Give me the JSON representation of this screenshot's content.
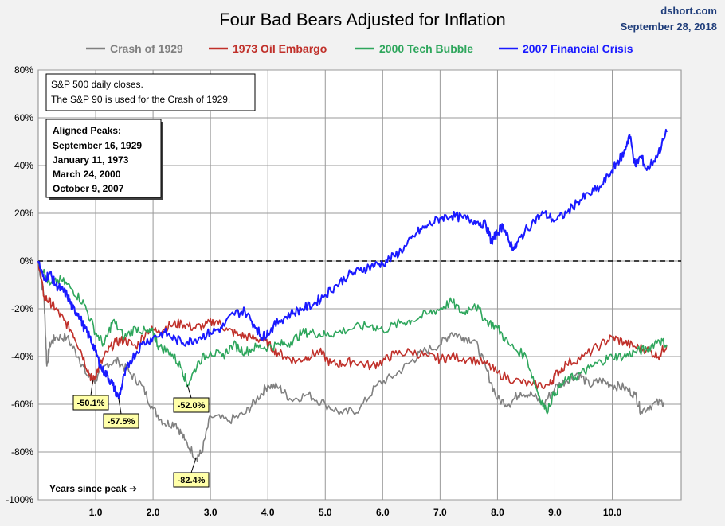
{
  "header": {
    "title": "Four Bad Bears Adjusted for Inflation",
    "brand": "dshort.com",
    "date": "September 28, 2018"
  },
  "notes": {
    "line1": "S&P 500 daily closes.",
    "line2": "The S&P 90 is used for the Crash of 1929."
  },
  "aligned_peaks": {
    "heading": "Aligned Peaks:",
    "items": [
      {
        "label": "September 16, 1929",
        "color": "#808080"
      },
      {
        "label": "January 11, 1973",
        "color": "#c0302a"
      },
      {
        "label": "March 24, 2000",
        "color": "#2ea65c"
      },
      {
        "label": "October 9, 2007",
        "color": "#1a1aff"
      }
    ]
  },
  "x_axis_note": "Years since peak ➔",
  "callouts": [
    {
      "text": "-50.1%",
      "series": 1,
      "x": 0.95,
      "y": -50.1
    },
    {
      "text": "-57.5%",
      "series": 3,
      "x": 1.4,
      "y": -57.5
    },
    {
      "text": "-52.0%",
      "series": 2,
      "x": 2.6,
      "y": -52.0
    },
    {
      "text": "-82.4%",
      "series": 0,
      "x": 2.75,
      "y": -82.4
    }
  ],
  "chart_data": {
    "type": "line",
    "title": "Four Bad Bears Adjusted for Inflation",
    "xlabel": "Years since peak",
    "ylabel": "",
    "xlim": [
      0,
      11.2
    ],
    "ylim": [
      -100,
      80
    ],
    "x_ticks": [
      1.0,
      2.0,
      3.0,
      4.0,
      5.0,
      6.0,
      7.0,
      8.0,
      9.0,
      10.0
    ],
    "x_tick_labels": [
      "1.0",
      "2.0",
      "3.0",
      "4.0",
      "5.0",
      "6.0",
      "7.0",
      "8.0",
      "9.0",
      "10.0"
    ],
    "y_ticks": [
      -100,
      -80,
      -60,
      -40,
      -20,
      0,
      20,
      40,
      60,
      80
    ],
    "y_tick_labels": [
      "-100%",
      "-80%",
      "-60%",
      "-40%",
      "-20%",
      "0%",
      "20%",
      "40%",
      "60%",
      "80%"
    ],
    "grid": true,
    "legend_position": "top",
    "zero_line": "dashed",
    "series": [
      {
        "name": "Crash of 1929",
        "color": "#808080",
        "points": [
          [
            0,
            0
          ],
          [
            0.1,
            -15
          ],
          [
            0.15,
            -44
          ],
          [
            0.2,
            -35
          ],
          [
            0.3,
            -32
          ],
          [
            0.5,
            -32
          ],
          [
            0.7,
            -40
          ],
          [
            0.85,
            -48
          ],
          [
            1.0,
            -50
          ],
          [
            1.2,
            -43
          ],
          [
            1.4,
            -42
          ],
          [
            1.6,
            -47
          ],
          [
            1.8,
            -52
          ],
          [
            2.0,
            -62
          ],
          [
            2.2,
            -68
          ],
          [
            2.4,
            -68
          ],
          [
            2.55,
            -75
          ],
          [
            2.75,
            -82.4
          ],
          [
            2.85,
            -80
          ],
          [
            3.0,
            -65
          ],
          [
            3.3,
            -67
          ],
          [
            3.6,
            -64
          ],
          [
            3.8,
            -58
          ],
          [
            4.0,
            -52
          ],
          [
            4.2,
            -53
          ],
          [
            4.4,
            -58
          ],
          [
            4.7,
            -56
          ],
          [
            5.0,
            -60
          ],
          [
            5.3,
            -64
          ],
          [
            5.6,
            -62
          ],
          [
            5.9,
            -52
          ],
          [
            6.2,
            -48
          ],
          [
            6.5,
            -42
          ],
          [
            6.7,
            -38
          ],
          [
            7.0,
            -35
          ],
          [
            7.2,
            -30
          ],
          [
            7.4,
            -32
          ],
          [
            7.6,
            -33
          ],
          [
            7.8,
            -45
          ],
          [
            8.0,
            -58
          ],
          [
            8.2,
            -60
          ],
          [
            8.4,
            -55
          ],
          [
            8.6,
            -56
          ],
          [
            8.8,
            -60
          ],
          [
            9.0,
            -53
          ],
          [
            9.2,
            -50
          ],
          [
            9.4,
            -47
          ],
          [
            9.6,
            -52
          ],
          [
            9.8,
            -50
          ],
          [
            10.0,
            -52
          ],
          [
            10.2,
            -53
          ],
          [
            10.4,
            -56
          ],
          [
            10.5,
            -63
          ],
          [
            10.7,
            -60
          ],
          [
            10.9,
            -59
          ]
        ]
      },
      {
        "name": "1973 Oil Embargo",
        "color": "#c0302a",
        "points": [
          [
            0,
            0
          ],
          [
            0.1,
            -15
          ],
          [
            0.2,
            -17
          ],
          [
            0.3,
            -20
          ],
          [
            0.45,
            -25
          ],
          [
            0.6,
            -30
          ],
          [
            0.75,
            -38
          ],
          [
            0.9,
            -48
          ],
          [
            0.95,
            -50.1
          ],
          [
            1.05,
            -45
          ],
          [
            1.2,
            -38
          ],
          [
            1.35,
            -34
          ],
          [
            1.5,
            -33
          ],
          [
            1.7,
            -36
          ],
          [
            1.9,
            -29
          ],
          [
            2.1,
            -29
          ],
          [
            2.3,
            -27
          ],
          [
            2.5,
            -26
          ],
          [
            2.7,
            -28
          ],
          [
            2.9,
            -27
          ],
          [
            3.1,
            -25
          ],
          [
            3.3,
            -29
          ],
          [
            3.5,
            -31
          ],
          [
            3.7,
            -32
          ],
          [
            3.9,
            -33
          ],
          [
            4.1,
            -37
          ],
          [
            4.3,
            -40
          ],
          [
            4.5,
            -42
          ],
          [
            4.7,
            -40
          ],
          [
            4.9,
            -38
          ],
          [
            5.1,
            -43
          ],
          [
            5.3,
            -43
          ],
          [
            5.5,
            -42
          ],
          [
            5.8,
            -44
          ],
          [
            6.0,
            -42
          ],
          [
            6.2,
            -39
          ],
          [
            6.5,
            -38
          ],
          [
            6.8,
            -40
          ],
          [
            7.0,
            -41
          ],
          [
            7.2,
            -40
          ],
          [
            7.5,
            -41
          ],
          [
            7.8,
            -43
          ],
          [
            8.0,
            -47
          ],
          [
            8.3,
            -50
          ],
          [
            8.6,
            -52
          ],
          [
            8.9,
            -52
          ],
          [
            9.0,
            -48
          ],
          [
            9.2,
            -43
          ],
          [
            9.5,
            -40
          ],
          [
            9.8,
            -35
          ],
          [
            10.0,
            -32
          ],
          [
            10.2,
            -34
          ],
          [
            10.4,
            -36
          ],
          [
            10.6,
            -37
          ],
          [
            10.8,
            -40
          ],
          [
            10.95,
            -35
          ]
        ]
      },
      {
        "name": "2000 Tech Bubble",
        "color": "#2ea65c",
        "points": [
          [
            0,
            0
          ],
          [
            0.2,
            -10
          ],
          [
            0.4,
            -8
          ],
          [
            0.6,
            -12
          ],
          [
            0.8,
            -18
          ],
          [
            1.0,
            -30
          ],
          [
            1.15,
            -35
          ],
          [
            1.3,
            -25
          ],
          [
            1.5,
            -32
          ],
          [
            1.7,
            -28
          ],
          [
            1.9,
            -30
          ],
          [
            2.0,
            -30
          ],
          [
            2.1,
            -36
          ],
          [
            2.3,
            -38
          ],
          [
            2.5,
            -45
          ],
          [
            2.6,
            -52
          ],
          [
            2.8,
            -42
          ],
          [
            3.0,
            -38
          ],
          [
            3.2,
            -40
          ],
          [
            3.4,
            -35
          ],
          [
            3.6,
            -38
          ],
          [
            3.8,
            -36
          ],
          [
            4.0,
            -36
          ],
          [
            4.2,
            -35
          ],
          [
            4.4,
            -34
          ],
          [
            4.6,
            -30
          ],
          [
            4.8,
            -30
          ],
          [
            5.0,
            -31
          ],
          [
            5.2,
            -30
          ],
          [
            5.5,
            -28
          ],
          [
            5.8,
            -27
          ],
          [
            6.0,
            -29
          ],
          [
            6.3,
            -26
          ],
          [
            6.5,
            -25
          ],
          [
            6.8,
            -22
          ],
          [
            7.0,
            -20
          ],
          [
            7.2,
            -17
          ],
          [
            7.4,
            -22
          ],
          [
            7.6,
            -18
          ],
          [
            7.8,
            -25
          ],
          [
            8.0,
            -28
          ],
          [
            8.2,
            -35
          ],
          [
            8.5,
            -40
          ],
          [
            8.7,
            -55
          ],
          [
            8.85,
            -63
          ],
          [
            9.0,
            -55
          ],
          [
            9.2,
            -50
          ],
          [
            9.4,
            -48
          ],
          [
            9.6,
            -45
          ],
          [
            9.8,
            -42
          ],
          [
            10.0,
            -40
          ],
          [
            10.2,
            -40
          ],
          [
            10.4,
            -38
          ],
          [
            10.6,
            -37
          ],
          [
            10.8,
            -33
          ],
          [
            10.95,
            -35
          ]
        ]
      },
      {
        "name": "2007 Financial Crisis",
        "color": "#1a1aff",
        "points": [
          [
            0,
            0
          ],
          [
            0.1,
            -8
          ],
          [
            0.2,
            -5
          ],
          [
            0.3,
            -10
          ],
          [
            0.4,
            -12
          ],
          [
            0.5,
            -14
          ],
          [
            0.6,
            -20
          ],
          [
            0.7,
            -22
          ],
          [
            0.8,
            -28
          ],
          [
            0.9,
            -32
          ],
          [
            1.0,
            -38
          ],
          [
            1.1,
            -45
          ],
          [
            1.2,
            -48
          ],
          [
            1.3,
            -52
          ],
          [
            1.4,
            -57.5
          ],
          [
            1.5,
            -48
          ],
          [
            1.6,
            -42
          ],
          [
            1.8,
            -35
          ],
          [
            2.0,
            -32
          ],
          [
            2.2,
            -30
          ],
          [
            2.4,
            -33
          ],
          [
            2.6,
            -34
          ],
          [
            2.8,
            -32
          ],
          [
            3.0,
            -30
          ],
          [
            3.2,
            -28
          ],
          [
            3.4,
            -22
          ],
          [
            3.6,
            -21
          ],
          [
            3.8,
            -28
          ],
          [
            3.9,
            -32
          ],
          [
            4.0,
            -30
          ],
          [
            4.2,
            -25
          ],
          [
            4.4,
            -22
          ],
          [
            4.6,
            -20
          ],
          [
            4.8,
            -18
          ],
          [
            5.0,
            -14
          ],
          [
            5.2,
            -10
          ],
          [
            5.4,
            -6
          ],
          [
            5.6,
            -4
          ],
          [
            5.8,
            -2
          ],
          [
            6.0,
            -1
          ],
          [
            6.2,
            2
          ],
          [
            6.4,
            6
          ],
          [
            6.6,
            12
          ],
          [
            6.8,
            15
          ],
          [
            7.0,
            18
          ],
          [
            7.2,
            19
          ],
          [
            7.4,
            18
          ],
          [
            7.6,
            17
          ],
          [
            7.8,
            15
          ],
          [
            7.9,
            8
          ],
          [
            8.0,
            12
          ],
          [
            8.1,
            15
          ],
          [
            8.2,
            8
          ],
          [
            8.3,
            5
          ],
          [
            8.4,
            10
          ],
          [
            8.6,
            16
          ],
          [
            8.8,
            20
          ],
          [
            9.0,
            17
          ],
          [
            9.2,
            20
          ],
          [
            9.4,
            25
          ],
          [
            9.6,
            28
          ],
          [
            9.8,
            31
          ],
          [
            10.0,
            38
          ],
          [
            10.1,
            42
          ],
          [
            10.2,
            45
          ],
          [
            10.3,
            53
          ],
          [
            10.4,
            40
          ],
          [
            10.5,
            44
          ],
          [
            10.6,
            38
          ],
          [
            10.8,
            45
          ],
          [
            10.95,
            54
          ]
        ]
      }
    ]
  }
}
